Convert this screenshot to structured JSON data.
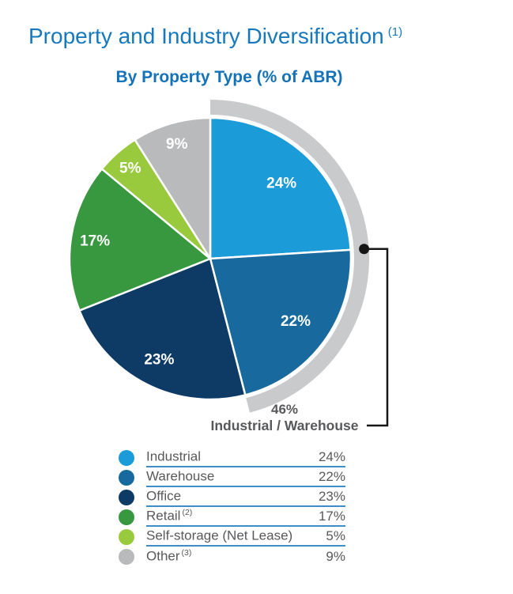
{
  "header": {
    "title": "Property and Industry Diversification",
    "title_sup": "(1)",
    "subtitle": "By Property Type (% of ABR)"
  },
  "annotation": {
    "percent": "46%",
    "label": "Industrial / Warehouse"
  },
  "chart_data": {
    "type": "pie",
    "title": "By Property Type (% of ABR)",
    "start_angle_deg": 0,
    "clockwise": true,
    "legend_position": "bottom",
    "slice_label_color": "#FFFFFF",
    "segments": [
      {
        "label": "Industrial",
        "value": 24,
        "display": "24%",
        "color": "#1B9CD8",
        "label_r": 0.74
      },
      {
        "label": "Warehouse",
        "value": 22,
        "display": "22%",
        "color": "#17699E",
        "label_r": 0.75
      },
      {
        "label": "Office",
        "value": 23,
        "display": "23%",
        "color": "#0E3A66",
        "label_r": 0.8
      },
      {
        "label": "Retail",
        "value": 17,
        "display": "17%",
        "color": "#37983F",
        "label_r": 0.83
      },
      {
        "label": "Self-storage (Net Lease)",
        "value": 5,
        "display": "5%",
        "color": "#99C93C",
        "label_r": 0.86
      },
      {
        "label": "Other",
        "value": 9,
        "display": "9%",
        "color": "#B9BABC",
        "label_r": 0.85
      }
    ],
    "highlight_arc": {
      "from_pct": 0,
      "to_pct": 46,
      "color": "#C9CACB",
      "label": "46%",
      "sublabel": "Industrial / Warehouse"
    }
  },
  "legend": {
    "rows": [
      {
        "label": "Industrial",
        "sup": "",
        "value": "24%"
      },
      {
        "label": "Warehouse",
        "sup": "",
        "value": "22%"
      },
      {
        "label": "Office",
        "sup": "",
        "value": "23%"
      },
      {
        "label": "Retail",
        "sup": "(2)",
        "value": "17%"
      },
      {
        "label": "Self-storage (Net Lease)",
        "sup": "",
        "value": "5%"
      },
      {
        "label": "Other",
        "sup": "(3)",
        "value": "9%"
      }
    ]
  },
  "colors": {
    "title_blue": "#1779BC",
    "subtitle_blue": "#1372B8",
    "legend_rule_blue": "#3E8DC6",
    "text_gray": "#58595B",
    "callout_black": "#161616"
  }
}
